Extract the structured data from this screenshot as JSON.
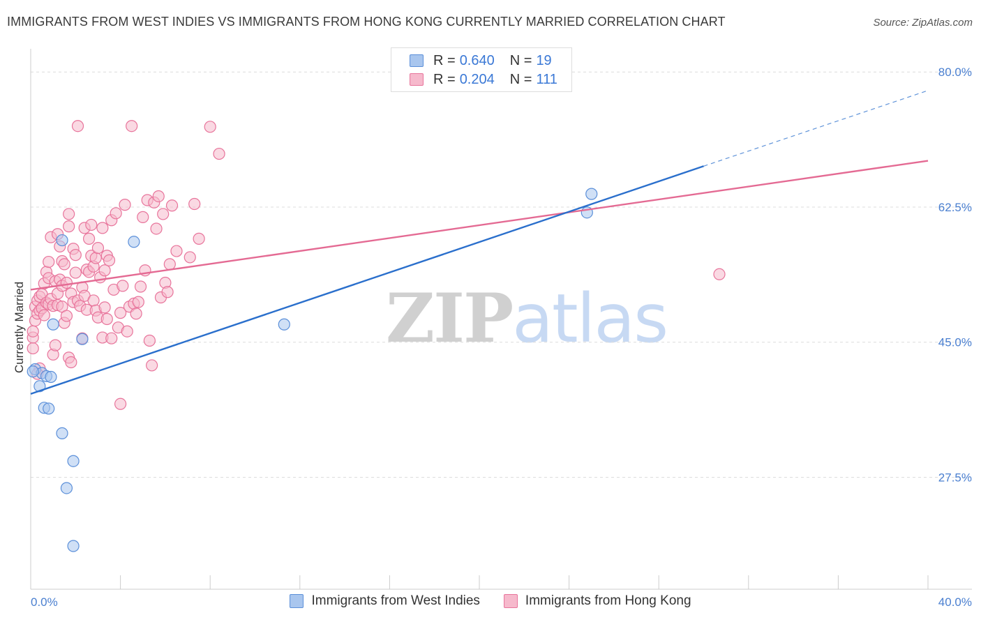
{
  "title": "IMMIGRANTS FROM WEST INDIES VS IMMIGRANTS FROM HONG KONG CURRENTLY MARRIED CORRELATION CHART",
  "source": "Source: ZipAtlas.com",
  "watermark": {
    "zip": "ZIP",
    "atlas": "atlas"
  },
  "legend_top": {
    "rows": [
      {
        "r_label": "R =",
        "r_value": "0.640",
        "n_label": "N =",
        "n_value": "19"
      },
      {
        "r_label": "R =",
        "r_value": "0.204",
        "n_label": "N =",
        "n_value": "111"
      }
    ]
  },
  "colors": {
    "blue_fill": "#a9c6ee",
    "blue_stroke": "#5b8fd9",
    "blue_line": "#2a6fcc",
    "pink_fill": "#f6b9cc",
    "pink_stroke": "#e8749b",
    "pink_line": "#e46a93",
    "grid": "#dcdcdc",
    "tick_text": "#4a7fd0"
  },
  "chart_data": {
    "type": "scatter",
    "title": "IMMIGRANTS FROM WEST INDIES VS IMMIGRANTS FROM HONG KONG CURRENTLY MARRIED CORRELATION CHART",
    "xlabel": "",
    "ylabel": "Currently Married",
    "xlim": [
      0,
      40
    ],
    "ylim": [
      13,
      83
    ],
    "x_tick_labels": [
      "0.0%",
      "40.0%"
    ],
    "y_ticks": [
      27.5,
      45.0,
      62.5,
      80.0
    ],
    "y_tick_labels": [
      "27.5%",
      "45.0%",
      "62.5%",
      "80.0%"
    ],
    "grid": true,
    "legend_position": "bottom",
    "series": [
      {
        "name": "Immigrants from West Indies",
        "R": 0.64,
        "N": 19,
        "trend": {
          "x0": 0,
          "y0": 38.3,
          "x1": 30.0,
          "y1": 67.8,
          "dashed_to_x": 40,
          "dashed_to_y": 77.6
        },
        "points": [
          [
            0.2,
            41.5
          ],
          [
            0.4,
            39.3
          ],
          [
            0.5,
            41.0
          ],
          [
            0.7,
            40.6
          ],
          [
            0.6,
            36.5
          ],
          [
            0.8,
            36.4
          ],
          [
            0.9,
            40.5
          ],
          [
            1.0,
            47.3
          ],
          [
            1.4,
            58.2
          ],
          [
            1.4,
            33.2
          ],
          [
            1.6,
            26.1
          ],
          [
            1.9,
            29.6
          ],
          [
            1.9,
            18.6
          ],
          [
            2.3,
            45.4
          ],
          [
            4.6,
            58.0
          ],
          [
            11.3,
            47.3
          ],
          [
            24.8,
            61.8
          ],
          [
            25.0,
            64.2
          ],
          [
            0.1,
            41.2
          ]
        ]
      },
      {
        "name": "Immigrants from Hong Kong",
        "R": 0.204,
        "N": 111,
        "trend": {
          "x0": 0,
          "y0": 51.8,
          "x1": 40,
          "y1": 68.5
        },
        "points": [
          [
            0.1,
            44.2
          ],
          [
            0.1,
            45.6
          ],
          [
            0.1,
            46.4
          ],
          [
            0.2,
            47.8
          ],
          [
            0.2,
            49.6
          ],
          [
            0.3,
            48.7
          ],
          [
            0.3,
            50.4
          ],
          [
            0.4,
            49.1
          ],
          [
            0.4,
            50.9
          ],
          [
            0.4,
            41.6
          ],
          [
            0.5,
            49.4
          ],
          [
            0.5,
            51.2
          ],
          [
            0.6,
            52.6
          ],
          [
            0.6,
            48.5
          ],
          [
            0.7,
            50.1
          ],
          [
            0.7,
            54.1
          ],
          [
            0.8,
            49.9
          ],
          [
            0.8,
            53.3
          ],
          [
            0.8,
            55.4
          ],
          [
            0.9,
            50.6
          ],
          [
            0.9,
            58.6
          ],
          [
            1.0,
            49.7
          ],
          [
            1.0,
            43.4
          ],
          [
            1.1,
            52.9
          ],
          [
            1.1,
            44.6
          ],
          [
            1.2,
            49.8
          ],
          [
            1.2,
            51.3
          ],
          [
            1.2,
            59.0
          ],
          [
            1.3,
            53.1
          ],
          [
            1.3,
            57.4
          ],
          [
            1.4,
            49.6
          ],
          [
            1.4,
            52.3
          ],
          [
            1.4,
            55.5
          ],
          [
            1.5,
            47.5
          ],
          [
            1.5,
            55.1
          ],
          [
            1.6,
            48.4
          ],
          [
            1.6,
            52.7
          ],
          [
            1.7,
            43.0
          ],
          [
            1.7,
            60.0
          ],
          [
            1.7,
            61.6
          ],
          [
            1.8,
            42.4
          ],
          [
            1.8,
            51.3
          ],
          [
            1.9,
            50.2
          ],
          [
            1.9,
            57.1
          ],
          [
            2.0,
            54.0
          ],
          [
            2.0,
            56.3
          ],
          [
            2.1,
            50.4
          ],
          [
            2.1,
            73.0
          ],
          [
            2.2,
            49.7
          ],
          [
            2.3,
            52.1
          ],
          [
            2.3,
            45.5
          ],
          [
            2.4,
            59.8
          ],
          [
            2.4,
            51.0
          ],
          [
            2.5,
            49.2
          ],
          [
            2.5,
            54.4
          ],
          [
            2.6,
            58.4
          ],
          [
            2.6,
            54.1
          ],
          [
            2.7,
            60.2
          ],
          [
            2.7,
            56.2
          ],
          [
            2.8,
            54.8
          ],
          [
            2.8,
            50.4
          ],
          [
            2.9,
            49.1
          ],
          [
            2.9,
            55.9
          ],
          [
            3.0,
            57.2
          ],
          [
            3.0,
            48.2
          ],
          [
            3.1,
            53.4
          ],
          [
            3.2,
            59.8
          ],
          [
            3.2,
            45.6
          ],
          [
            3.3,
            49.5
          ],
          [
            3.3,
            54.3
          ],
          [
            3.4,
            56.2
          ],
          [
            3.4,
            48.0
          ],
          [
            3.5,
            55.6
          ],
          [
            3.6,
            60.8
          ],
          [
            3.6,
            45.5
          ],
          [
            3.7,
            51.8
          ],
          [
            3.8,
            61.7
          ],
          [
            3.9,
            46.9
          ],
          [
            4.0,
            37.0
          ],
          [
            4.0,
            48.8
          ],
          [
            4.1,
            52.3
          ],
          [
            4.2,
            62.8
          ],
          [
            4.3,
            46.4
          ],
          [
            4.4,
            49.6
          ],
          [
            4.5,
            73.0
          ],
          [
            4.6,
            50.0
          ],
          [
            4.7,
            48.7
          ],
          [
            4.8,
            50.2
          ],
          [
            4.9,
            52.2
          ],
          [
            5.0,
            61.2
          ],
          [
            5.1,
            54.3
          ],
          [
            5.2,
            63.4
          ],
          [
            5.3,
            45.2
          ],
          [
            5.4,
            42.0
          ],
          [
            5.5,
            63.1
          ],
          [
            5.6,
            59.7
          ],
          [
            5.7,
            63.9
          ],
          [
            5.8,
            50.8
          ],
          [
            5.9,
            61.6
          ],
          [
            6.0,
            52.7
          ],
          [
            6.1,
            51.5
          ],
          [
            6.2,
            55.1
          ],
          [
            6.3,
            62.7
          ],
          [
            6.5,
            56.8
          ],
          [
            7.1,
            56.0
          ],
          [
            7.3,
            62.9
          ],
          [
            7.5,
            58.4
          ],
          [
            8.0,
            72.9
          ],
          [
            8.4,
            69.4
          ],
          [
            30.7,
            53.8
          ],
          [
            0.3,
            40.9
          ]
        ]
      }
    ]
  },
  "legend_bottom": [
    {
      "label": "Immigrants from West Indies"
    },
    {
      "label": "Immigrants from Hong Kong"
    }
  ]
}
